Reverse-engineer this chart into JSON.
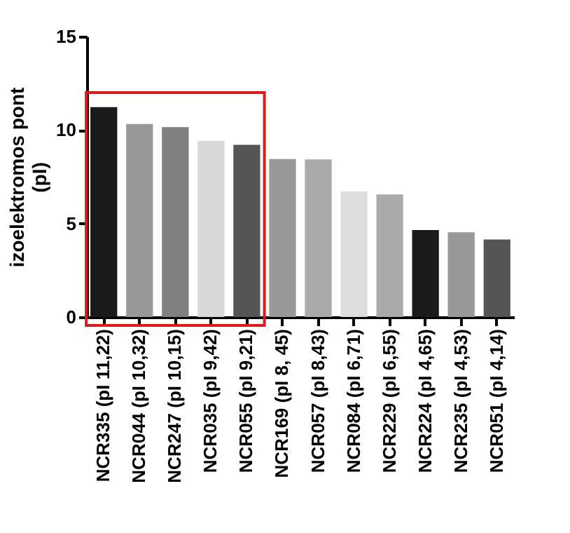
{
  "chart_data": {
    "type": "bar",
    "ylabel": "izoelektromos pont\n(pI)",
    "categories": [
      "NCR335 (pI 11,22)",
      "NCR044 (pI 10,32)",
      "NCR247 (pI 10,15)",
      "NCR035 (pI 9,42)",
      "NCR055 (pI 9,21)",
      "NCR169 (pI 8, 45)",
      "NCR057 (pI 8,43)",
      "NCR084 (pI 6,71)",
      "NCR229 (pI 6,55)",
      "NCR224 (pI 4,65)",
      "NCR235 (pI 4,53)",
      "NCR051 (pI 4,14)"
    ],
    "values": [
      11.22,
      10.32,
      10.15,
      9.42,
      9.21,
      8.45,
      8.43,
      6.71,
      6.55,
      4.65,
      4.53,
      4.14
    ],
    "colors": [
      "#1a1a1a",
      "#999999",
      "#808080",
      "#d9d9d9",
      "#555555",
      "#999999",
      "#aaaaaa",
      "#dddddd",
      "#aaaaaa",
      "#1a1a1a",
      "#999999",
      "#555555"
    ],
    "ylim": [
      0,
      15
    ],
    "yticks": [
      0,
      5,
      10,
      15
    ],
    "grid": false
  }
}
